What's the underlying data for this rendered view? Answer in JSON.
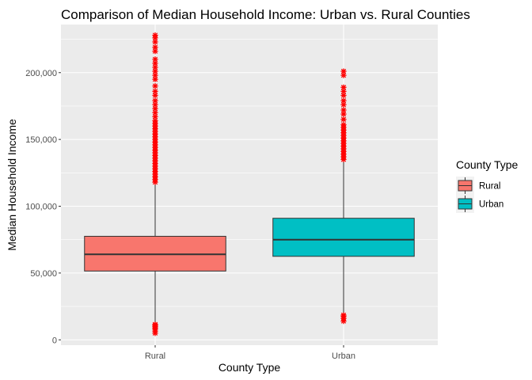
{
  "chart_data": {
    "type": "boxplot",
    "title": "Comparison of Median Household Income: Urban vs. Rural Counties",
    "xlabel": "County Type",
    "ylabel": "Median Household Income",
    "categories": [
      "Rural",
      "Urban"
    ],
    "yticks": [
      0,
      50000,
      100000,
      150000,
      200000
    ],
    "ytick_labels": [
      "0",
      "50,000",
      "100,000",
      "150,000",
      "200,000"
    ],
    "ylim": [
      -4000,
      236000
    ],
    "grid": true,
    "legend": {
      "title": "County Type",
      "position": "right",
      "entries": [
        "Rural",
        "Urban"
      ]
    },
    "colors": {
      "Rural": "#F8766D",
      "Urban": "#00BFC4",
      "outlier": "#FF0000",
      "panel": "#EBEBEB",
      "grid": "#FFFFFF"
    },
    "boxes": [
      {
        "name": "Rural",
        "q1": 51500,
        "median": 64000,
        "q3": 77500,
        "whisker_low": 12500,
        "whisker_high": 116000,
        "outliers": [
          5000,
          6500,
          8000,
          9000,
          10000,
          11000,
          11500,
          118000,
          120000,
          122000,
          124000,
          126000,
          128000,
          130000,
          132000,
          134000,
          136000,
          138000,
          140000,
          142000,
          144000,
          146000,
          148000,
          150000,
          152000,
          154000,
          156000,
          158000,
          160000,
          162000,
          164000,
          167000,
          170000,
          173000,
          176000,
          179000,
          183000,
          186000,
          190000,
          195000,
          198000,
          201000,
          204000,
          207000,
          210000,
          216000,
          219000,
          223000,
          226000,
          228000
        ]
      },
      {
        "name": "Urban",
        "q1": 62500,
        "median": 75000,
        "q3": 91000,
        "whisker_low": 19000,
        "whisker_high": 134000,
        "outliers": [
          14000,
          16000,
          17500,
          18500,
          135000,
          137000,
          139000,
          141000,
          143000,
          145000,
          147000,
          149000,
          151000,
          153000,
          155000,
          157000,
          159000,
          161000,
          165000,
          169000,
          172000,
          176000,
          179000,
          183000,
          186000,
          189000,
          198000,
          201000
        ]
      }
    ]
  }
}
